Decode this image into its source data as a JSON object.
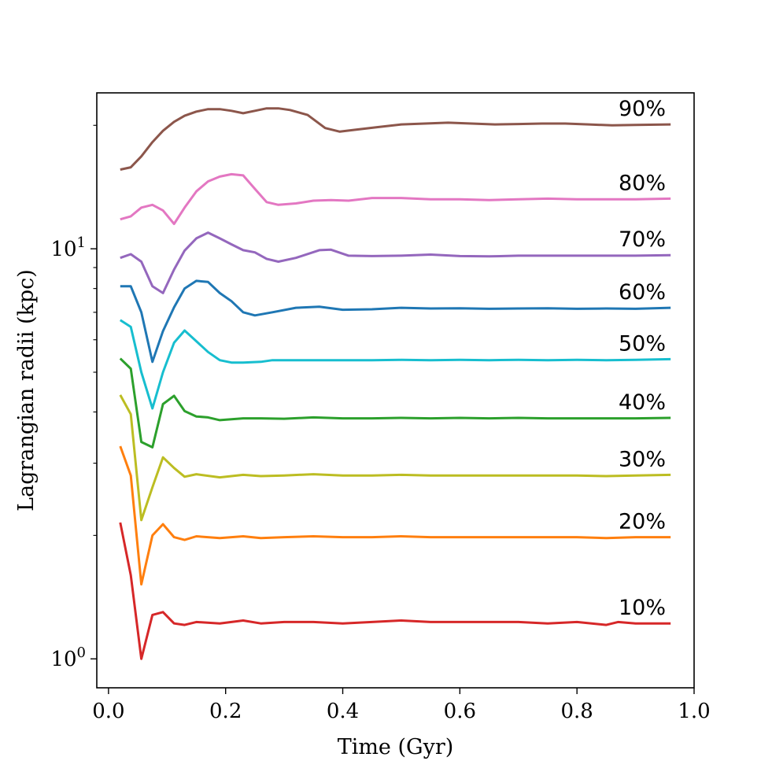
{
  "chart_data": {
    "type": "line",
    "title": "",
    "xlabel": "Time (Gyr)",
    "ylabel": "Lagrangian radii (kpc)",
    "xscale": "linear",
    "yscale": "log",
    "xlim": [
      -0.02,
      1.0
    ],
    "ylim": [
      0.85,
      24.0
    ],
    "xticks": [
      0.0,
      0.2,
      0.4,
      0.6,
      0.8,
      1.0
    ],
    "xtick_labels": [
      "0.0",
      "0.2",
      "0.4",
      "0.6",
      "0.8",
      "1.0"
    ],
    "ytick_major": [
      {
        "value": 1,
        "base": "10",
        "exp": "0"
      },
      {
        "value": 10,
        "base": "10",
        "exp": "1"
      }
    ],
    "ytick_minor": [
      2,
      3,
      4,
      5,
      6,
      7,
      8,
      9,
      20
    ],
    "grid": false,
    "legend": "none",
    "series": [
      {
        "name": "10%",
        "color": "#d62728",
        "x": [
          0.02,
          0.038,
          0.056,
          0.075,
          0.093,
          0.112,
          0.13,
          0.15,
          0.19,
          0.23,
          0.26,
          0.3,
          0.35,
          0.4,
          0.45,
          0.5,
          0.55,
          0.6,
          0.65,
          0.7,
          0.75,
          0.8,
          0.85,
          0.87,
          0.9,
          0.96
        ],
        "y": [
          2.15,
          1.6,
          1.0,
          1.28,
          1.3,
          1.22,
          1.21,
          1.23,
          1.22,
          1.24,
          1.22,
          1.23,
          1.23,
          1.22,
          1.23,
          1.24,
          1.23,
          1.23,
          1.23,
          1.23,
          1.22,
          1.23,
          1.21,
          1.23,
          1.22,
          1.22
        ]
      },
      {
        "name": "20%",
        "color": "#ff7f0e",
        "x": [
          0.02,
          0.038,
          0.056,
          0.075,
          0.093,
          0.112,
          0.13,
          0.15,
          0.19,
          0.23,
          0.26,
          0.3,
          0.35,
          0.4,
          0.45,
          0.5,
          0.55,
          0.6,
          0.65,
          0.7,
          0.75,
          0.8,
          0.85,
          0.9,
          0.96
        ],
        "y": [
          3.3,
          2.8,
          1.52,
          2.0,
          2.13,
          1.98,
          1.95,
          1.99,
          1.97,
          1.99,
          1.97,
          1.98,
          1.99,
          1.98,
          1.98,
          1.99,
          1.98,
          1.98,
          1.98,
          1.98,
          1.98,
          1.98,
          1.97,
          1.98,
          1.98
        ]
      },
      {
        "name": "30%",
        "color": "#bcbd22",
        "x": [
          0.02,
          0.038,
          0.056,
          0.075,
          0.093,
          0.112,
          0.13,
          0.15,
          0.19,
          0.23,
          0.26,
          0.3,
          0.35,
          0.4,
          0.45,
          0.5,
          0.55,
          0.6,
          0.65,
          0.7,
          0.75,
          0.8,
          0.85,
          0.9,
          0.96
        ],
        "y": [
          4.4,
          3.95,
          2.18,
          2.62,
          3.1,
          2.92,
          2.78,
          2.82,
          2.77,
          2.81,
          2.79,
          2.8,
          2.82,
          2.8,
          2.8,
          2.81,
          2.8,
          2.8,
          2.8,
          2.8,
          2.8,
          2.8,
          2.79,
          2.8,
          2.81
        ]
      },
      {
        "name": "40%",
        "color": "#2ca02c",
        "x": [
          0.02,
          0.038,
          0.056,
          0.075,
          0.093,
          0.112,
          0.13,
          0.15,
          0.17,
          0.19,
          0.21,
          0.23,
          0.26,
          0.3,
          0.35,
          0.4,
          0.45,
          0.5,
          0.55,
          0.6,
          0.65,
          0.7,
          0.75,
          0.8,
          0.85,
          0.9,
          0.96
        ],
        "y": [
          5.4,
          5.1,
          3.38,
          3.28,
          4.18,
          4.38,
          4.02,
          3.9,
          3.88,
          3.82,
          3.84,
          3.86,
          3.86,
          3.85,
          3.88,
          3.86,
          3.86,
          3.87,
          3.86,
          3.87,
          3.86,
          3.87,
          3.86,
          3.86,
          3.86,
          3.86,
          3.87
        ]
      },
      {
        "name": "50%",
        "color": "#17becf",
        "x": [
          0.02,
          0.038,
          0.056,
          0.075,
          0.093,
          0.112,
          0.13,
          0.15,
          0.17,
          0.19,
          0.21,
          0.23,
          0.26,
          0.28,
          0.3,
          0.35,
          0.4,
          0.45,
          0.5,
          0.55,
          0.6,
          0.65,
          0.7,
          0.75,
          0.8,
          0.85,
          0.9,
          0.96
        ],
        "y": [
          6.7,
          6.45,
          5.0,
          4.08,
          5.0,
          5.9,
          6.32,
          5.95,
          5.6,
          5.35,
          5.28,
          5.28,
          5.3,
          5.35,
          5.35,
          5.35,
          5.35,
          5.35,
          5.36,
          5.35,
          5.36,
          5.35,
          5.36,
          5.35,
          5.36,
          5.35,
          5.36,
          5.38
        ]
      },
      {
        "name": "60%",
        "color": "#1f77b4",
        "x": [
          0.02,
          0.038,
          0.056,
          0.075,
          0.093,
          0.112,
          0.13,
          0.15,
          0.17,
          0.19,
          0.21,
          0.23,
          0.25,
          0.28,
          0.32,
          0.36,
          0.4,
          0.45,
          0.5,
          0.55,
          0.6,
          0.65,
          0.7,
          0.75,
          0.8,
          0.85,
          0.9,
          0.96
        ],
        "y": [
          8.1,
          8.1,
          7.0,
          5.3,
          6.3,
          7.2,
          8.0,
          8.35,
          8.3,
          7.8,
          7.45,
          7.0,
          6.88,
          7.0,
          7.18,
          7.22,
          7.1,
          7.12,
          7.18,
          7.15,
          7.16,
          7.14,
          7.15,
          7.16,
          7.14,
          7.15,
          7.14,
          7.18
        ]
      },
      {
        "name": "70%",
        "color": "#9467bd",
        "x": [
          0.02,
          0.038,
          0.056,
          0.075,
          0.093,
          0.112,
          0.13,
          0.15,
          0.17,
          0.19,
          0.21,
          0.23,
          0.25,
          0.27,
          0.29,
          0.32,
          0.36,
          0.38,
          0.41,
          0.45,
          0.5,
          0.55,
          0.6,
          0.65,
          0.7,
          0.75,
          0.8,
          0.85,
          0.9,
          0.96
        ],
        "y": [
          9.5,
          9.7,
          9.3,
          8.1,
          7.8,
          8.9,
          9.9,
          10.6,
          10.95,
          10.6,
          10.25,
          9.92,
          9.8,
          9.45,
          9.3,
          9.5,
          9.92,
          9.95,
          9.62,
          9.6,
          9.62,
          9.68,
          9.6,
          9.58,
          9.62,
          9.62,
          9.62,
          9.62,
          9.62,
          9.65
        ]
      },
      {
        "name": "80%",
        "color": "#e377c2",
        "x": [
          0.02,
          0.038,
          0.056,
          0.075,
          0.093,
          0.112,
          0.13,
          0.15,
          0.17,
          0.19,
          0.21,
          0.23,
          0.25,
          0.27,
          0.29,
          0.32,
          0.35,
          0.38,
          0.41,
          0.45,
          0.5,
          0.55,
          0.6,
          0.65,
          0.7,
          0.75,
          0.8,
          0.85,
          0.9,
          0.96
        ],
        "y": [
          11.8,
          12.0,
          12.6,
          12.8,
          12.4,
          11.5,
          12.6,
          13.8,
          14.6,
          15.0,
          15.2,
          15.1,
          14.0,
          13.0,
          12.8,
          12.9,
          13.1,
          13.15,
          13.1,
          13.3,
          13.3,
          13.2,
          13.2,
          13.15,
          13.2,
          13.25,
          13.2,
          13.2,
          13.2,
          13.25
        ]
      },
      {
        "name": "90%",
        "color": "#8c564b",
        "x": [
          0.02,
          0.038,
          0.056,
          0.075,
          0.093,
          0.112,
          0.13,
          0.15,
          0.17,
          0.19,
          0.21,
          0.23,
          0.25,
          0.27,
          0.29,
          0.31,
          0.34,
          0.37,
          0.395,
          0.42,
          0.46,
          0.5,
          0.54,
          0.58,
          0.62,
          0.66,
          0.7,
          0.74,
          0.78,
          0.82,
          0.86,
          0.9,
          0.96
        ],
        "y": [
          15.6,
          15.8,
          16.8,
          18.2,
          19.4,
          20.4,
          21.1,
          21.6,
          21.9,
          21.9,
          21.7,
          21.4,
          21.7,
          22.0,
          22.0,
          21.8,
          21.2,
          19.7,
          19.3,
          19.5,
          19.8,
          20.1,
          20.2,
          20.3,
          20.2,
          20.1,
          20.15,
          20.2,
          20.2,
          20.1,
          20.0,
          20.05,
          20.1
        ]
      }
    ]
  }
}
